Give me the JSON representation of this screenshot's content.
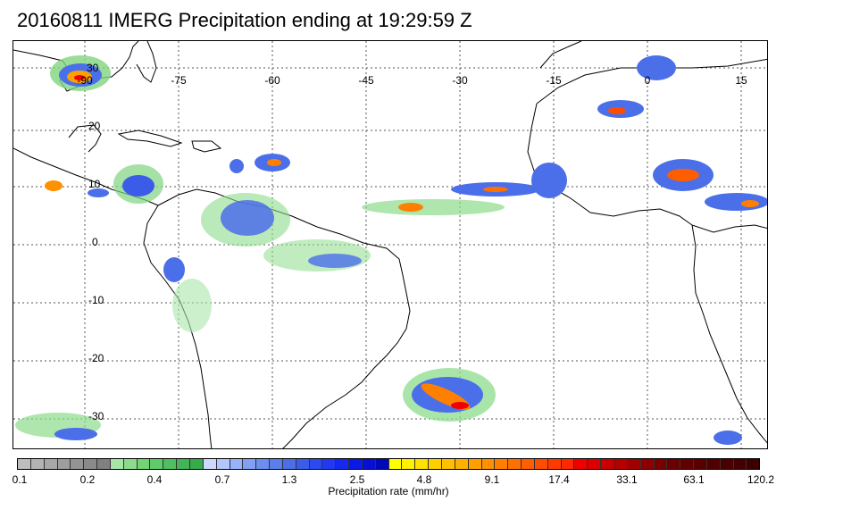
{
  "title": "20160811 IMERG Precipitation ending at 19:29:59 Z",
  "map": {
    "lon_labels": [
      "-90",
      "-75",
      "-60",
      "-45",
      "-30",
      "-15",
      "0",
      "15"
    ],
    "lat_labels": [
      "30",
      "20",
      "10",
      "0",
      "-10",
      "-20",
      "-30"
    ],
    "gridline_style": "dotted",
    "land_outline_color": "#000000",
    "background": "#ffffff"
  },
  "colorbar": {
    "tick_labels": [
      "0.1",
      "0.2",
      "0.4",
      "0.7",
      "1.3",
      "2.5",
      "4.8",
      "9.1",
      "17.4",
      "33.1",
      "63.1",
      "120.2"
    ],
    "label": "Precipitation rate (mm/hr)",
    "colors": [
      "#bdbdbd",
      "#b3b3b3",
      "#a8a8a8",
      "#9e9e9e",
      "#949494",
      "#8a8a8a",
      "#808080",
      "#a8e6a8",
      "#8cdc8c",
      "#74d474",
      "#5ecb6c",
      "#4fbf62",
      "#43b457",
      "#39a94d",
      "#cdd9ff",
      "#b3c6ff",
      "#9ab2fb",
      "#82a0f5",
      "#6b8ff0",
      "#5a7fec",
      "#4b6fe9",
      "#3a5ce8",
      "#2d4af0",
      "#2139f2",
      "#1529f0",
      "#0a1ae6",
      "#0510d2",
      "#0008b8",
      "#ffff00",
      "#ffef00",
      "#ffe000",
      "#ffd000",
      "#ffc000",
      "#ffb000",
      "#ffa000",
      "#ff9000",
      "#ff8000",
      "#ff7000",
      "#ff5e00",
      "#ff4c00",
      "#ff3a00",
      "#ff2800",
      "#f00000",
      "#dc0000",
      "#c80000",
      "#b40000",
      "#a00000",
      "#8c0000",
      "#780000",
      "#6a0000",
      "#600000",
      "#580000",
      "#500000",
      "#4a0000",
      "#440000",
      "#3c0000"
    ]
  }
}
